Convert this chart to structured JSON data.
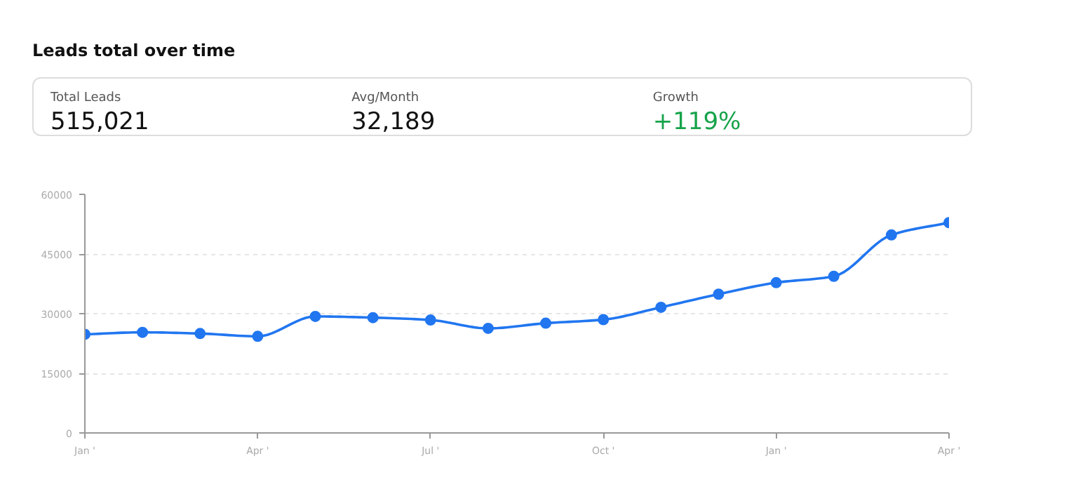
{
  "chart_data": [
    {
      "type": "other",
      "title": "Leads total over time",
      "annotations": [
        "Total Leads",
        "515,021",
        "Avg/Month",
        "32,189",
        "Growth",
        "+119%"
      ]
    },
    {
      "type": "line",
      "categories": [
        "Jan '",
        null,
        null,
        "Apr '",
        null,
        null,
        "Jul '",
        null,
        null,
        "Oct '",
        null,
        null,
        "Jan '",
        null,
        null,
        "Apr '"
      ],
      "series": [
        {
          "color": "#2176f0",
          "values": [
            24800,
            25300,
            25000,
            24300,
            29300,
            29000,
            28400,
            26300,
            27600,
            28500,
            31600,
            34900,
            37800,
            39400,
            49800,
            52900
          ]
        }
      ],
      "ylim": [
        0,
        60000
      ],
      "yticks": [
        0,
        15000,
        30000,
        45000,
        60000
      ],
      "grid": "y",
      "marker": "circle",
      "line_style": "solid"
    }
  ]
}
